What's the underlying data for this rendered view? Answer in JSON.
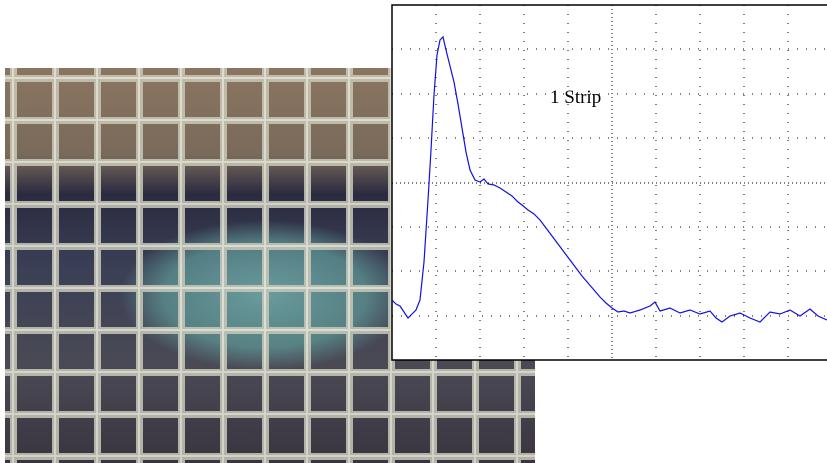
{
  "annotation": "1 Strip"
}
